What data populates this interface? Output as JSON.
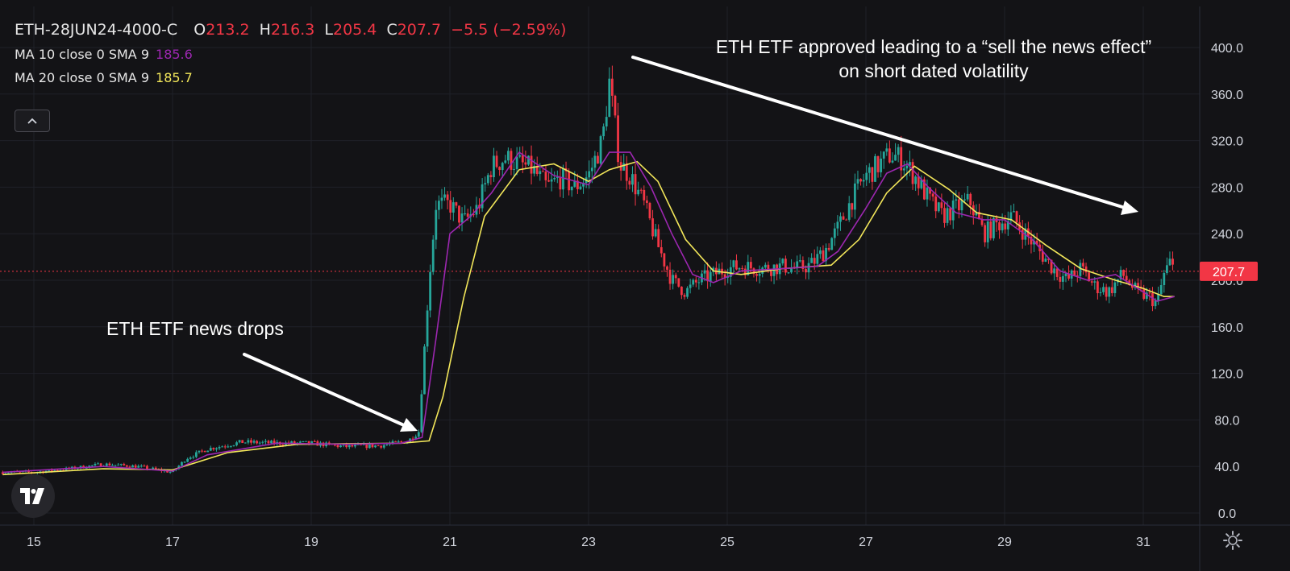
{
  "legend": {
    "symbol": "ETH-28JUN24-4000-C",
    "o_label": "O",
    "o_value": "213.2",
    "h_label": "H",
    "h_value": "216.3",
    "l_label": "L",
    "l_value": "205.4",
    "c_label": "C",
    "c_value": "207.7",
    "change": "−5.5 (−2.59%)",
    "ma10_label": "MA 10 close 0 SMA 9",
    "ma10_value": "185.6",
    "ma20_label": "MA 20 close 0 SMA 9",
    "ma20_value": "185.7",
    "ma10_color": "#9c27b0",
    "ma20_color": "#f2e65a",
    "down_color": "#f23645"
  },
  "annotations": {
    "news_drops": "ETH ETF news drops",
    "approved_line1": "ETH ETF approved leading to a “sell the news effect”",
    "approved_line2": "on short dated volatility"
  },
  "icons": {
    "collapse": "chevron-up-icon",
    "logo": "tradingview-logo",
    "settings": "gear-icon"
  },
  "chart_data": {
    "type": "candlestick",
    "last_price": 207.7,
    "last_price_label": "207.7",
    "up_color": "#26a69a",
    "down_color": "#f23645",
    "ylim": [
      0,
      400
    ],
    "y_ticks": [
      0,
      40,
      80,
      120,
      160,
      200,
      240,
      280,
      320,
      360,
      400
    ],
    "y_tick_labels": [
      "0.0",
      "40.0",
      "80.0",
      "120.0",
      "160.0",
      "200.0",
      "240.0",
      "280.0",
      "320.0",
      "360.0",
      "400.0"
    ],
    "x_tick_labels": [
      "15",
      "17",
      "19",
      "21",
      "23",
      "25",
      "27",
      "29",
      "31"
    ],
    "x_tick_days": [
      15,
      17,
      19,
      21,
      23,
      25,
      27,
      29,
      31
    ],
    "xlim": [
      14.55,
      32.2
    ],
    "price_path": [
      [
        14.55,
        35
      ],
      [
        15.0,
        35
      ],
      [
        15.5,
        38
      ],
      [
        16.0,
        42
      ],
      [
        16.5,
        40
      ],
      [
        17.0,
        35
      ],
      [
        17.2,
        47
      ],
      [
        17.5,
        55
      ],
      [
        18.0,
        61
      ],
      [
        18.5,
        60
      ],
      [
        19.0,
        60
      ],
      [
        19.5,
        57
      ],
      [
        20.0,
        58
      ],
      [
        20.4,
        62
      ],
      [
        20.55,
        70
      ],
      [
        20.62,
        130
      ],
      [
        20.7,
        200
      ],
      [
        20.8,
        265
      ],
      [
        21.0,
        265
      ],
      [
        21.2,
        250
      ],
      [
        21.4,
        262
      ],
      [
        21.6,
        298
      ],
      [
        21.8,
        305
      ],
      [
        22.0,
        300
      ],
      [
        22.2,
        295
      ],
      [
        22.4,
        280
      ],
      [
        22.6,
        288
      ],
      [
        22.8,
        280
      ],
      [
        23.0,
        290
      ],
      [
        23.2,
        320
      ],
      [
        23.3,
        370
      ],
      [
        23.45,
        300
      ],
      [
        23.6,
        290
      ],
      [
        23.8,
        265
      ],
      [
        24.0,
        230
      ],
      [
        24.2,
        200
      ],
      [
        24.4,
        190
      ],
      [
        24.6,
        200
      ],
      [
        24.8,
        205
      ],
      [
        25.0,
        210
      ],
      [
        25.2,
        212
      ],
      [
        25.5,
        210
      ],
      [
        25.8,
        212
      ],
      [
        26.0,
        210
      ],
      [
        26.2,
        213
      ],
      [
        26.4,
        225
      ],
      [
        26.6,
        245
      ],
      [
        26.8,
        270
      ],
      [
        27.0,
        290
      ],
      [
        27.2,
        300
      ],
      [
        27.35,
        308
      ],
      [
        27.5,
        305
      ],
      [
        27.7,
        290
      ],
      [
        27.9,
        270
      ],
      [
        28.1,
        255
      ],
      [
        28.3,
        262
      ],
      [
        28.5,
        268
      ],
      [
        28.7,
        240
      ],
      [
        28.9,
        248
      ],
      [
        29.1,
        255
      ],
      [
        29.3,
        240
      ],
      [
        29.5,
        225
      ],
      [
        29.7,
        210
      ],
      [
        29.9,
        200
      ],
      [
        30.1,
        210
      ],
      [
        30.3,
        195
      ],
      [
        30.5,
        190
      ],
      [
        30.7,
        205
      ],
      [
        30.9,
        190
      ],
      [
        31.1,
        185
      ],
      [
        31.2,
        180
      ],
      [
        31.3,
        205
      ],
      [
        31.38,
        215
      ],
      [
        31.45,
        208
      ]
    ],
    "ma10_path": [
      [
        14.55,
        35
      ],
      [
        16.0,
        40
      ],
      [
        17.0,
        36
      ],
      [
        17.5,
        50
      ],
      [
        18.5,
        60
      ],
      [
        19.5,
        59
      ],
      [
        20.3,
        60
      ],
      [
        20.6,
        65
      ],
      [
        20.8,
        150
      ],
      [
        21.0,
        240
      ],
      [
        21.3,
        255
      ],
      [
        21.6,
        275
      ],
      [
        22.0,
        310
      ],
      [
        22.5,
        290
      ],
      [
        23.0,
        282
      ],
      [
        23.3,
        310
      ],
      [
        23.6,
        310
      ],
      [
        23.9,
        280
      ],
      [
        24.2,
        240
      ],
      [
        24.5,
        205
      ],
      [
        24.8,
        198
      ],
      [
        25.2,
        208
      ],
      [
        25.8,
        210
      ],
      [
        26.3,
        212
      ],
      [
        26.6,
        225
      ],
      [
        27.0,
        262
      ],
      [
        27.3,
        292
      ],
      [
        27.6,
        300
      ],
      [
        27.9,
        280
      ],
      [
        28.3,
        258
      ],
      [
        28.7,
        252
      ],
      [
        29.0,
        252
      ],
      [
        29.4,
        235
      ],
      [
        29.8,
        208
      ],
      [
        30.2,
        200
      ],
      [
        30.6,
        205
      ],
      [
        31.0,
        190
      ],
      [
        31.2,
        182
      ],
      [
        31.45,
        186
      ]
    ],
    "ma20_path": [
      [
        14.55,
        33
      ],
      [
        16.0,
        38
      ],
      [
        17.0,
        37
      ],
      [
        17.8,
        52
      ],
      [
        18.8,
        59
      ],
      [
        20.3,
        60
      ],
      [
        20.7,
        62
      ],
      [
        20.9,
        100
      ],
      [
        21.2,
        185
      ],
      [
        21.5,
        255
      ],
      [
        22.0,
        295
      ],
      [
        22.5,
        300
      ],
      [
        23.0,
        285
      ],
      [
        23.3,
        295
      ],
      [
        23.7,
        302
      ],
      [
        24.0,
        285
      ],
      [
        24.4,
        235
      ],
      [
        24.8,
        208
      ],
      [
        25.2,
        205
      ],
      [
        25.8,
        210
      ],
      [
        26.5,
        213
      ],
      [
        26.9,
        235
      ],
      [
        27.3,
        275
      ],
      [
        27.7,
        298
      ],
      [
        28.2,
        278
      ],
      [
        28.6,
        258
      ],
      [
        29.1,
        252
      ],
      [
        29.6,
        230
      ],
      [
        30.1,
        210
      ],
      [
        30.6,
        200
      ],
      [
        31.0,
        193
      ],
      [
        31.3,
        186
      ],
      [
        31.45,
        186
      ]
    ]
  }
}
